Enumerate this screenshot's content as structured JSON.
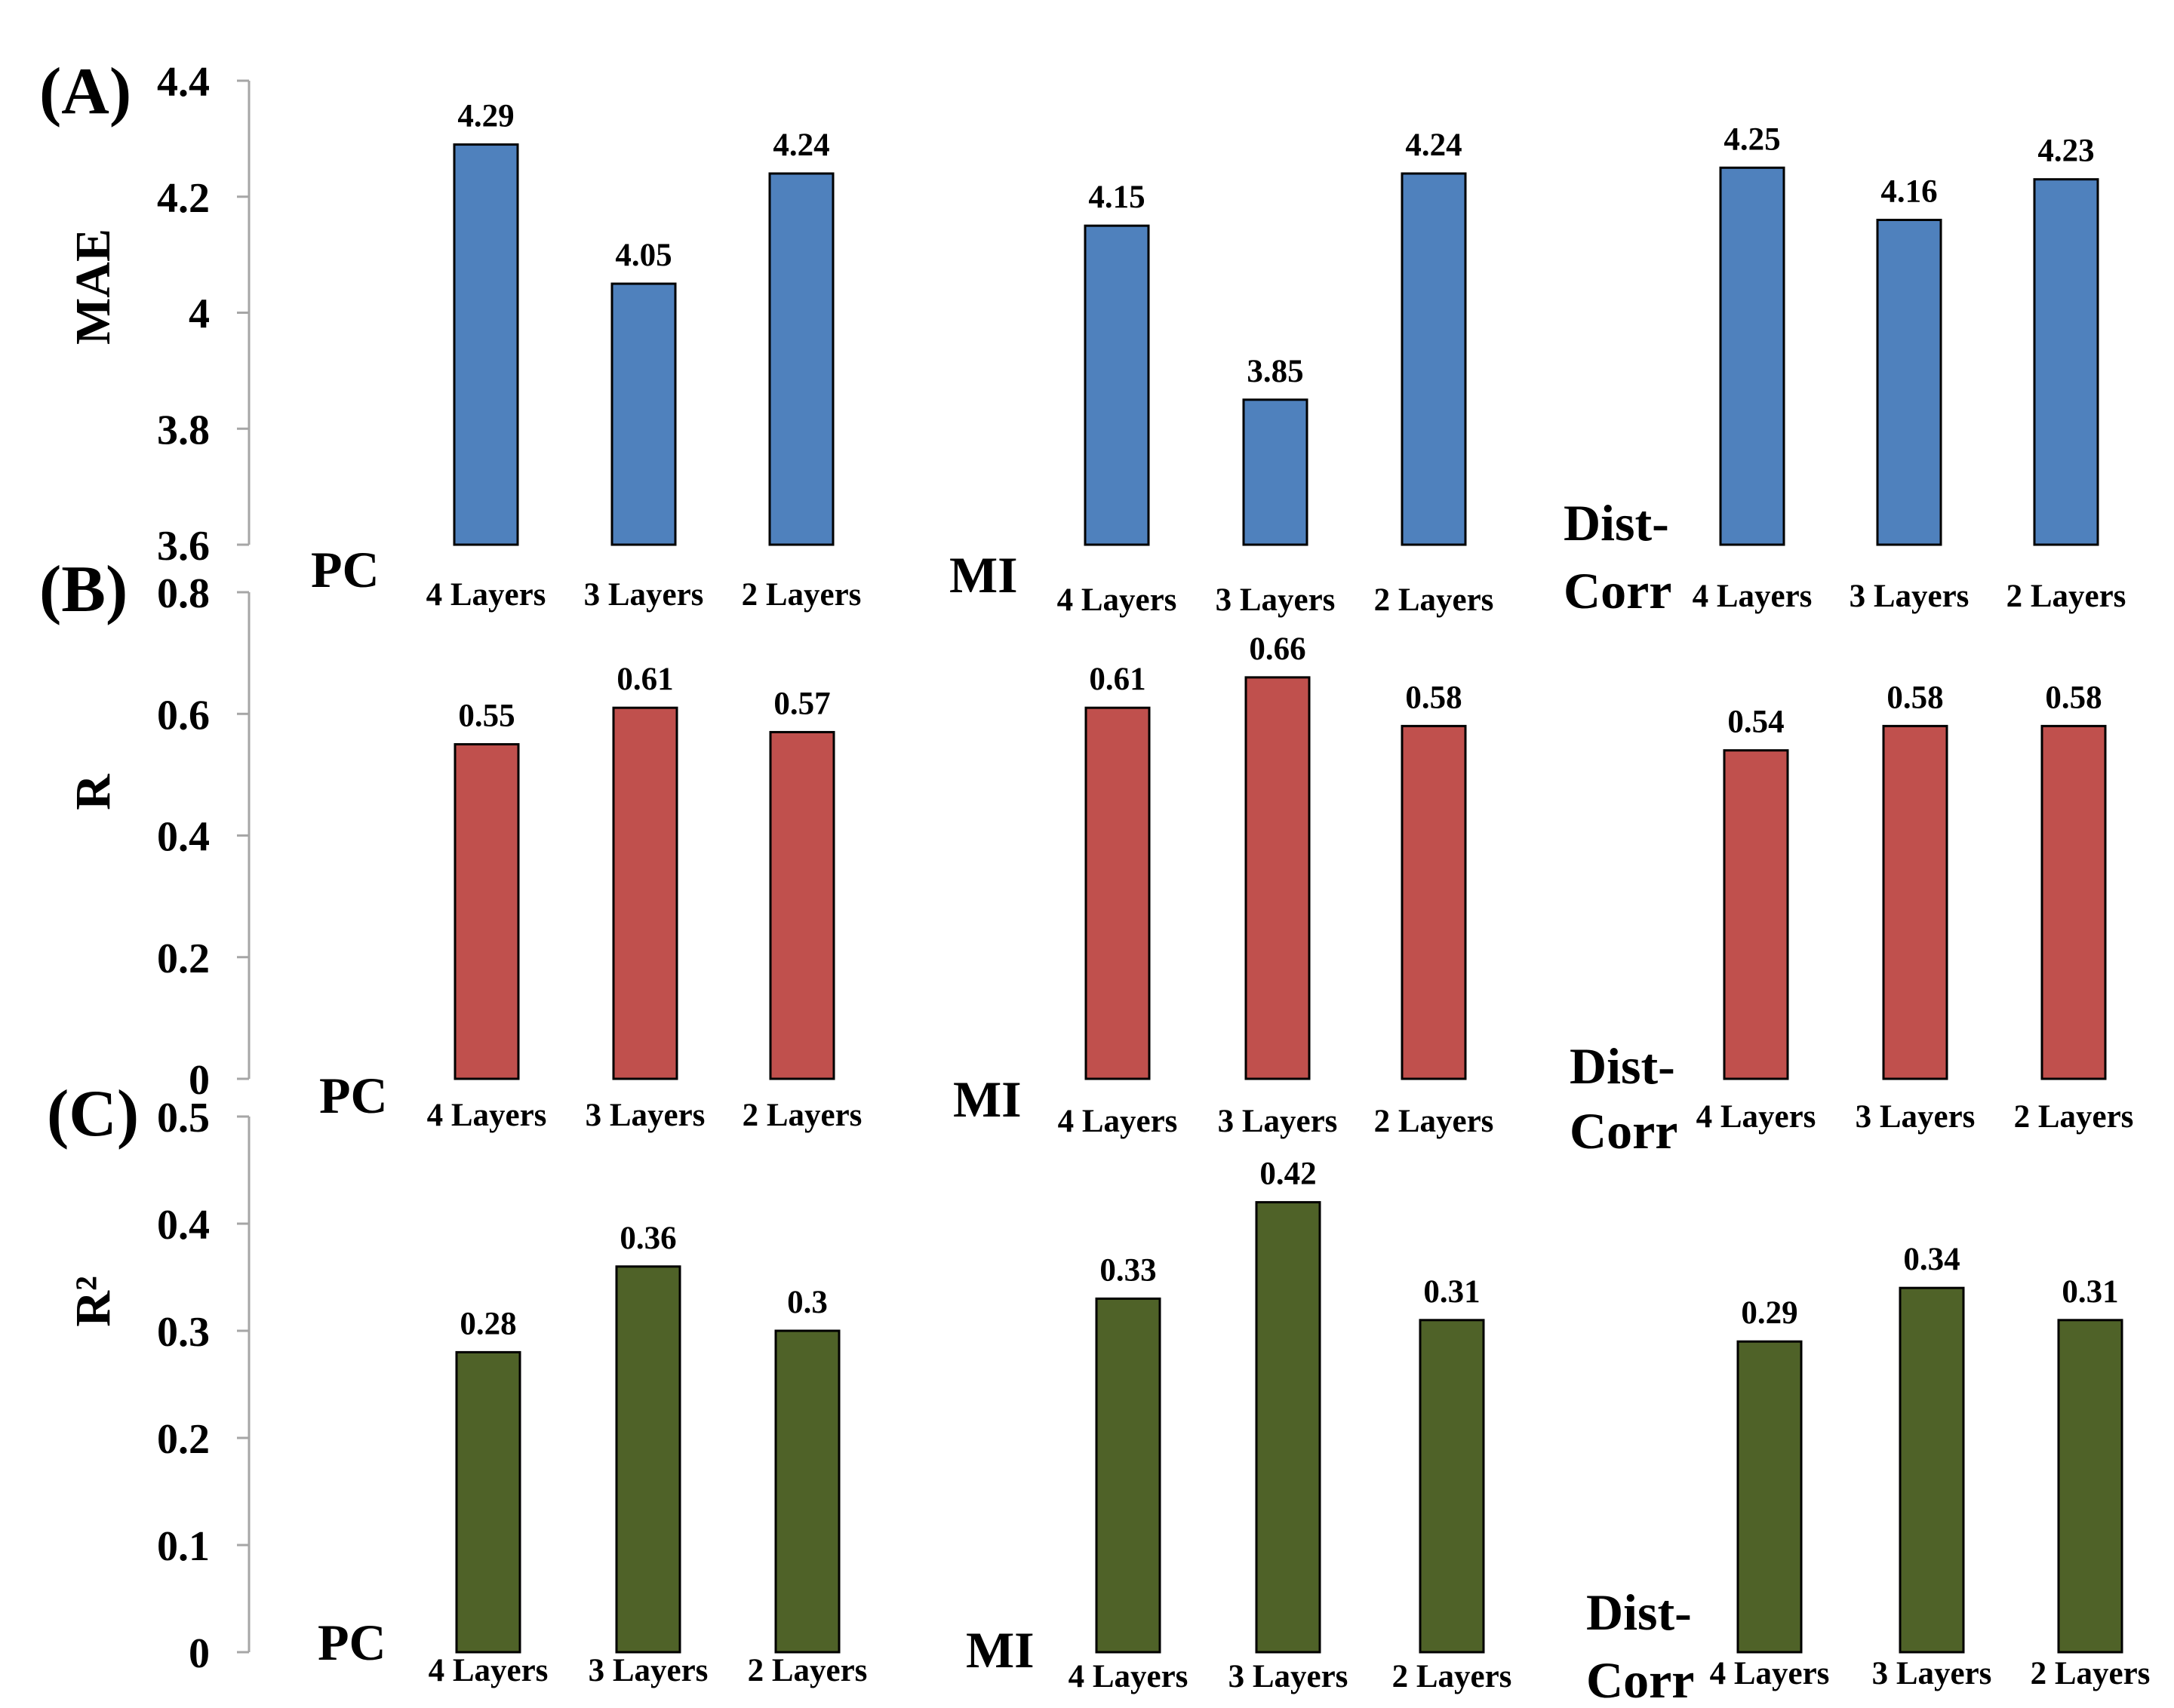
{
  "chart_data": [
    {
      "type": "bar",
      "panel_label": "(A)",
      "ylabel": "MAE",
      "ylim": [
        3.6,
        4.4
      ],
      "yticks": [
        "3.6",
        "3.8",
        "4",
        "4.2",
        "4.4"
      ],
      "bar_color": "#4F81BD",
      "groups": [
        {
          "name": "PC",
          "categories": [
            "4  Layers",
            "3  Layers",
            "2 Layers"
          ],
          "values": [
            4.29,
            4.05,
            4.24
          ],
          "labels": [
            "4.29",
            "4.05",
            "4.24"
          ]
        },
        {
          "name": "MI",
          "categories": [
            "4  Layers",
            "3  Layers",
            "2 Layers"
          ],
          "values": [
            4.15,
            3.85,
            4.24
          ],
          "labels": [
            "4.15",
            "3.85",
            "4.24"
          ]
        },
        {
          "name": "Dist-Corr",
          "name_lines": [
            "Dist-",
            "Corr"
          ],
          "categories": [
            "4  Layers",
            "3  Layers",
            "2 Layers"
          ],
          "values": [
            4.25,
            4.16,
            4.23
          ],
          "labels": [
            "4.25",
            "4.16",
            "4.23"
          ]
        }
      ]
    },
    {
      "type": "bar",
      "panel_label": "(B)",
      "ylabel": "R",
      "ylim": [
        0,
        0.8
      ],
      "yticks": [
        "0",
        "0.2",
        "0.4",
        "0.6",
        "0.8"
      ],
      "bar_color": "#C0504D",
      "groups": [
        {
          "name": "PC",
          "categories": [
            "4  Layers",
            "3  Layers",
            "2 Layers"
          ],
          "values": [
            0.55,
            0.61,
            0.57
          ],
          "labels": [
            "0.55",
            "0.61",
            "0.57"
          ]
        },
        {
          "name": "MI",
          "categories": [
            "4  Layers",
            "3  Layers",
            "2 Layers"
          ],
          "values": [
            0.61,
            0.66,
            0.58
          ],
          "labels": [
            "0.61",
            "0.66",
            "0.58"
          ]
        },
        {
          "name": "Dist-Corr",
          "name_lines": [
            "Dist-",
            "Corr"
          ],
          "categories": [
            "4  Layers",
            "3  Layers",
            "2 Layers"
          ],
          "values": [
            0.54,
            0.58,
            0.58
          ],
          "labels": [
            "0.54",
            "0.58",
            "0.58"
          ]
        }
      ]
    },
    {
      "type": "bar",
      "panel_label": "(C)",
      "ylabel": "R²",
      "ylim": [
        0,
        0.5
      ],
      "yticks": [
        "0",
        "0.1",
        "0.2",
        "0.3",
        "0.4",
        "0.5"
      ],
      "bar_color": "#4F6228",
      "groups": [
        {
          "name": "PC",
          "categories": [
            "4  Layers",
            "3  Layers",
            "2 Layers"
          ],
          "values": [
            0.28,
            0.36,
            0.3
          ],
          "labels": [
            "0.28",
            "0.36",
            "0.3"
          ]
        },
        {
          "name": "MI",
          "categories": [
            "4  Layers",
            "3  Layers",
            "2 Layers"
          ],
          "values": [
            0.33,
            0.42,
            0.31
          ],
          "labels": [
            "0.33",
            "0.42",
            "0.31"
          ]
        },
        {
          "name": "Dist-Corr",
          "name_lines": [
            "Dist-",
            "Corr"
          ],
          "categories": [
            "4  Layers",
            "3  Layers",
            "2 Layers"
          ],
          "values": [
            0.29,
            0.34,
            0.31
          ],
          "labels": [
            "0.29",
            "0.34",
            "0.31"
          ]
        }
      ]
    }
  ]
}
